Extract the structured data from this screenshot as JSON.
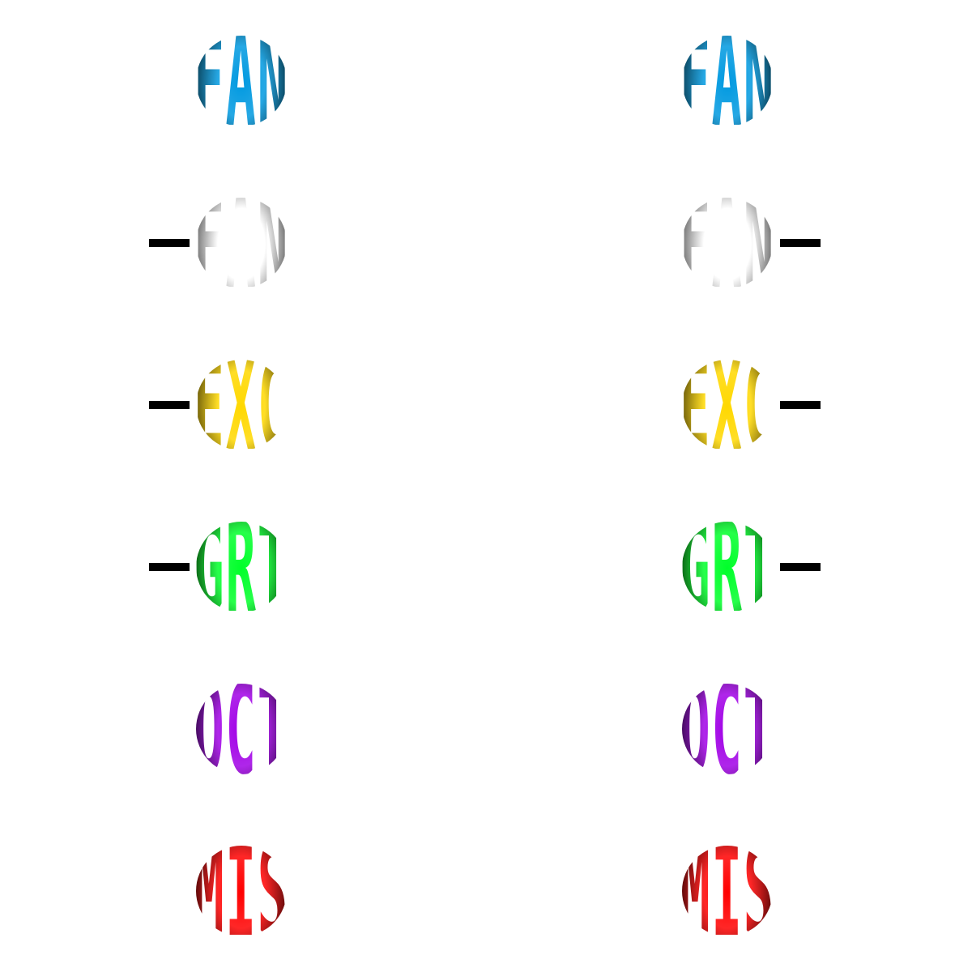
{
  "badges": [
    {
      "id": "fan-blue",
      "label": "FAN",
      "color": "#0099e0",
      "dark": "#02222e",
      "connectors": [
        "none",
        "none"
      ]
    },
    {
      "id": "fan-white",
      "label": "FAN",
      "color": "#ffffff",
      "dark": "#3e3e3e",
      "connectors": [
        "left",
        "right"
      ]
    },
    {
      "id": "exc-yellow",
      "label": "EXC",
      "color": "#ffd800",
      "dark": "#3a3000",
      "connectors": [
        "left",
        "right"
      ]
    },
    {
      "id": "grt-green",
      "label": "GRT",
      "color": "#00ff2a",
      "dark": "#033204",
      "connectors": [
        "left",
        "right"
      ]
    },
    {
      "id": "oct-purple",
      "label": "OCT",
      "color": "#a100e6",
      "dark": "#210330",
      "connectors": [
        "none",
        "none"
      ]
    },
    {
      "id": "mis-red",
      "label": "MIS",
      "color": "#ff0000",
      "dark": "#280202",
      "connectors": [
        "none",
        "none"
      ]
    }
  ],
  "columns": [
    "left",
    "right"
  ],
  "connector_color": "#000000"
}
